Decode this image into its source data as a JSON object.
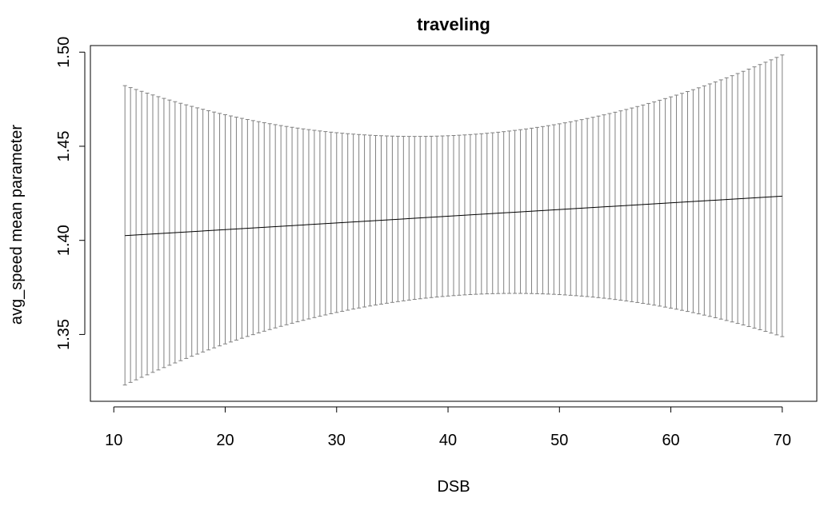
{
  "chart_data": {
    "type": "line",
    "title": "traveling",
    "xlabel": "DSB",
    "ylabel": "avg_speed mean parameter",
    "xlim": [
      7.9,
      73.1
    ],
    "ylim": [
      1.3145,
      1.5035
    ],
    "x_ticks": [
      10,
      20,
      30,
      40,
      50,
      60,
      70
    ],
    "x_tick_labels": [
      "10",
      "20",
      "30",
      "40",
      "50",
      "60",
      "70"
    ],
    "y_ticks": [
      1.35,
      1.4,
      1.45,
      1.5
    ],
    "y_tick_labels": [
      "1.35",
      "1.40",
      "1.45",
      "1.50"
    ],
    "grid": false,
    "series": [
      {
        "kind": "line",
        "x_range": [
          11,
          70
        ],
        "y_start": 1.4025,
        "y_end": 1.4235
      },
      {
        "kind": "errorbars",
        "x_range": [
          11,
          70
        ],
        "x_step": 0.5,
        "center": 1.413,
        "center_slope": 0.000356,
        "halfwidth_min": 0.0425,
        "halfwidth_min_x": 41.5,
        "halfwidth_curvature": 3.98e-05
      }
    ],
    "colors": {
      "mean_line": "#000000",
      "error_bars": "#808080"
    }
  }
}
